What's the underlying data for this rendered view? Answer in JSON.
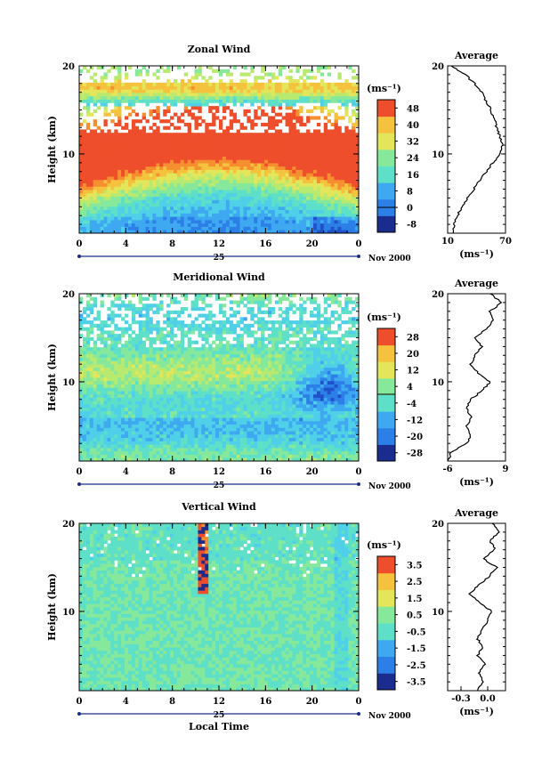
{
  "chart_data": [
    {
      "type": "heatmap",
      "title": "Zonal Wind",
      "ylabel": "Height (km)",
      "unit_label": "(ms⁻¹)",
      "y_ticks": [
        "10",
        "20"
      ],
      "x_ticks": [
        "0",
        "4",
        "8",
        "12",
        "16",
        "20",
        "0"
      ],
      "x_date_label": "25",
      "month_label": "Nov 2000",
      "ylim": [
        1,
        20
      ],
      "xlim": [
        0,
        24
      ],
      "colorbar_ticks": [
        "48",
        "40",
        "32",
        "24",
        "16",
        "8",
        "0",
        "-8"
      ],
      "colorbar_range": [
        -12,
        52
      ],
      "profile": {
        "title": "Average",
        "x_ticks": [
          "10",
          "70"
        ],
        "xlim": [
          10,
          70
        ],
        "unit_label": "(ms⁻¹)",
        "y_ticks": [
          "10",
          "20"
        ],
        "points": [
          [
            15,
            1
          ],
          [
            17,
            2
          ],
          [
            20,
            3
          ],
          [
            25,
            4
          ],
          [
            31,
            5
          ],
          [
            37,
            6
          ],
          [
            43,
            7
          ],
          [
            50,
            8
          ],
          [
            57,
            9
          ],
          [
            64,
            10
          ],
          [
            67,
            11
          ],
          [
            64,
            12
          ],
          [
            61,
            13
          ],
          [
            58,
            14
          ],
          [
            55,
            15
          ],
          [
            50,
            16
          ],
          [
            45,
            17
          ],
          [
            38,
            18
          ],
          [
            28,
            19
          ],
          [
            14,
            20
          ]
        ]
      }
    },
    {
      "type": "heatmap",
      "title": "Meridional Wind",
      "ylabel": "Height (km)",
      "unit_label": "(ms⁻¹)",
      "y_ticks": [
        "10",
        "20"
      ],
      "x_ticks": [
        "0",
        "4",
        "8",
        "12",
        "16",
        "20",
        "0"
      ],
      "x_date_label": "25",
      "month_label": "Nov 2000",
      "ylim": [
        1,
        20
      ],
      "xlim": [
        0,
        24
      ],
      "colorbar_ticks": [
        "28",
        "20",
        "12",
        "4",
        "-4",
        "-12",
        "-20",
        "-28"
      ],
      "colorbar_range": [
        -32,
        32
      ],
      "profile": {
        "title": "Average",
        "x_ticks": [
          "-6",
          "9"
        ],
        "xlim": [
          -6,
          9
        ],
        "unit_label": "(ms⁻¹)",
        "y_ticks": [
          "10",
          "20"
        ],
        "points": [
          [
            -6,
            1
          ],
          [
            -5,
            2
          ],
          [
            -1,
            3
          ],
          [
            0,
            4
          ],
          [
            -1,
            5
          ],
          [
            0,
            6
          ],
          [
            -1,
            7
          ],
          [
            0,
            8
          ],
          [
            3,
            9
          ],
          [
            5,
            10
          ],
          [
            2,
            11
          ],
          [
            0,
            12
          ],
          [
            1,
            13
          ],
          [
            3,
            14
          ],
          [
            1,
            15
          ],
          [
            4,
            16
          ],
          [
            6,
            17
          ],
          [
            5,
            18
          ],
          [
            8,
            19
          ],
          [
            5,
            20
          ]
        ]
      }
    },
    {
      "type": "heatmap",
      "title": "Vertical Wind",
      "ylabel": "Height (km)",
      "xlabel": "Local Time",
      "unit_label": "(ms⁻¹)",
      "y_ticks": [
        "10",
        "20"
      ],
      "x_ticks": [
        "0",
        "4",
        "8",
        "12",
        "16",
        "20",
        "0"
      ],
      "x_date_label": "25",
      "month_label": "Nov 2000",
      "ylim": [
        1,
        20
      ],
      "xlim": [
        0,
        24
      ],
      "colorbar_ticks": [
        "3.5",
        "2.5",
        "1.5",
        "0.5",
        "-0.5",
        "-1.5",
        "-2.5",
        "-3.5"
      ],
      "colorbar_range": [
        -4,
        4
      ],
      "profile": {
        "title": "Average",
        "x_ticks": [
          "-0.3",
          "0.0"
        ],
        "xlim": [
          -0.45,
          0.2
        ],
        "unit_label": "(ms⁻¹)",
        "y_ticks": [
          "10",
          "20"
        ],
        "points": [
          [
            -0.12,
            1
          ],
          [
            -0.05,
            2
          ],
          [
            -0.1,
            3
          ],
          [
            -0.03,
            4
          ],
          [
            -0.11,
            5
          ],
          [
            -0.06,
            6
          ],
          [
            -0.12,
            7
          ],
          [
            -0.05,
            8
          ],
          [
            0.0,
            9
          ],
          [
            0.05,
            10
          ],
          [
            -0.1,
            11
          ],
          [
            -0.2,
            12
          ],
          [
            -0.1,
            13
          ],
          [
            0.02,
            14
          ],
          [
            0.1,
            15
          ],
          [
            -0.05,
            16
          ],
          [
            0.08,
            17
          ],
          [
            0.03,
            18
          ],
          [
            0.12,
            19
          ],
          [
            0.05,
            20
          ]
        ]
      }
    }
  ]
}
